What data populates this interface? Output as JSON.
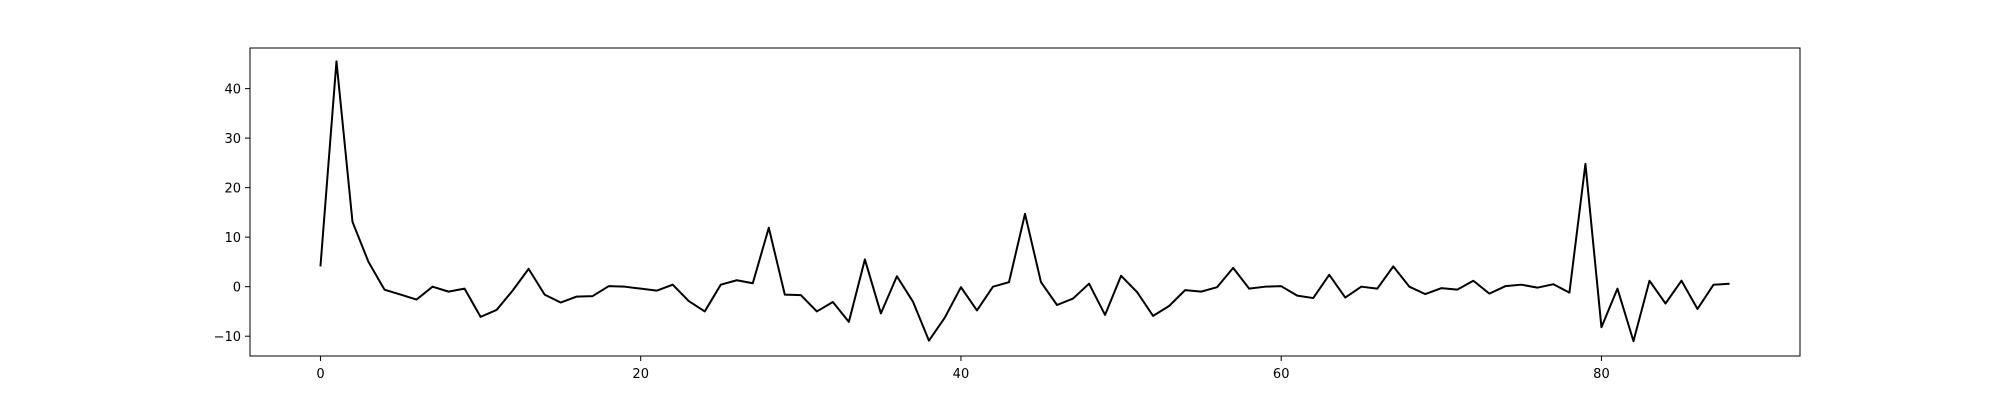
{
  "chart_data": {
    "type": "line",
    "title": "",
    "xlabel": "",
    "ylabel": "",
    "xlim": [
      -4.4,
      92.4
    ],
    "ylim": [
      -14,
      48.2
    ],
    "grid": false,
    "x_ticks": [
      0,
      20,
      40,
      60,
      80
    ],
    "y_ticks": [
      -10,
      0,
      10,
      20,
      30,
      40
    ],
    "series": [
      {
        "color": "#000000",
        "x": [
          0,
          1,
          2,
          3,
          4,
          5,
          6,
          7,
          8,
          9,
          10,
          11,
          12,
          13,
          14,
          15,
          16,
          17,
          18,
          19,
          20,
          21,
          22,
          23,
          24,
          25,
          26,
          27,
          28,
          29,
          30,
          31,
          32,
          33,
          34,
          35,
          36,
          37,
          38,
          39,
          40,
          41,
          42,
          43,
          44,
          45,
          46,
          47,
          48,
          49,
          50,
          51,
          52,
          53,
          54,
          55,
          56,
          57,
          58,
          59,
          60,
          61,
          62,
          63,
          64,
          65,
          66,
          67,
          68,
          69,
          70,
          71,
          72,
          73,
          74,
          75,
          76,
          77,
          78,
          79,
          80,
          81,
          82,
          83,
          84,
          85,
          86,
          87,
          88
        ],
        "y": [
          4.1,
          45.5,
          13.1,
          5,
          -0.6,
          -1.6,
          -2.6,
          0,
          -1,
          -0.4,
          -6.1,
          -4.7,
          -0.8,
          3.6,
          -1.6,
          -3.2,
          -2,
          -1.9,
          0.1,
          0,
          -0.4,
          -0.8,
          0.4,
          -2.9,
          -5,
          0.4,
          1.3,
          0.7,
          11.9,
          -1.6,
          -1.7,
          -5,
          -3.1,
          -7.1,
          5.5,
          -5.4,
          2.1,
          -3,
          -10.9,
          -6.2,
          -0.1,
          -4.8,
          0,
          0.9,
          14.7,
          0.9,
          -3.7,
          -2.4,
          0.6,
          -5.7,
          2.2,
          -1.1,
          -5.9,
          -3.9,
          -0.7,
          -1,
          -0.1,
          3.8,
          -0.4,
          0,
          0.1,
          -1.8,
          -2.3,
          2.4,
          -2.2,
          0,
          -0.4,
          4.1,
          0,
          -1.5,
          -0.3,
          -0.6,
          1.2,
          -1.4,
          0.1,
          0.4,
          -0.2,
          0.5,
          -1.2,
          24.8,
          -8.2,
          -0.4,
          -11,
          1.2,
          -3.4,
          1.2,
          -4.5,
          0.4,
          0.6
        ]
      }
    ]
  }
}
